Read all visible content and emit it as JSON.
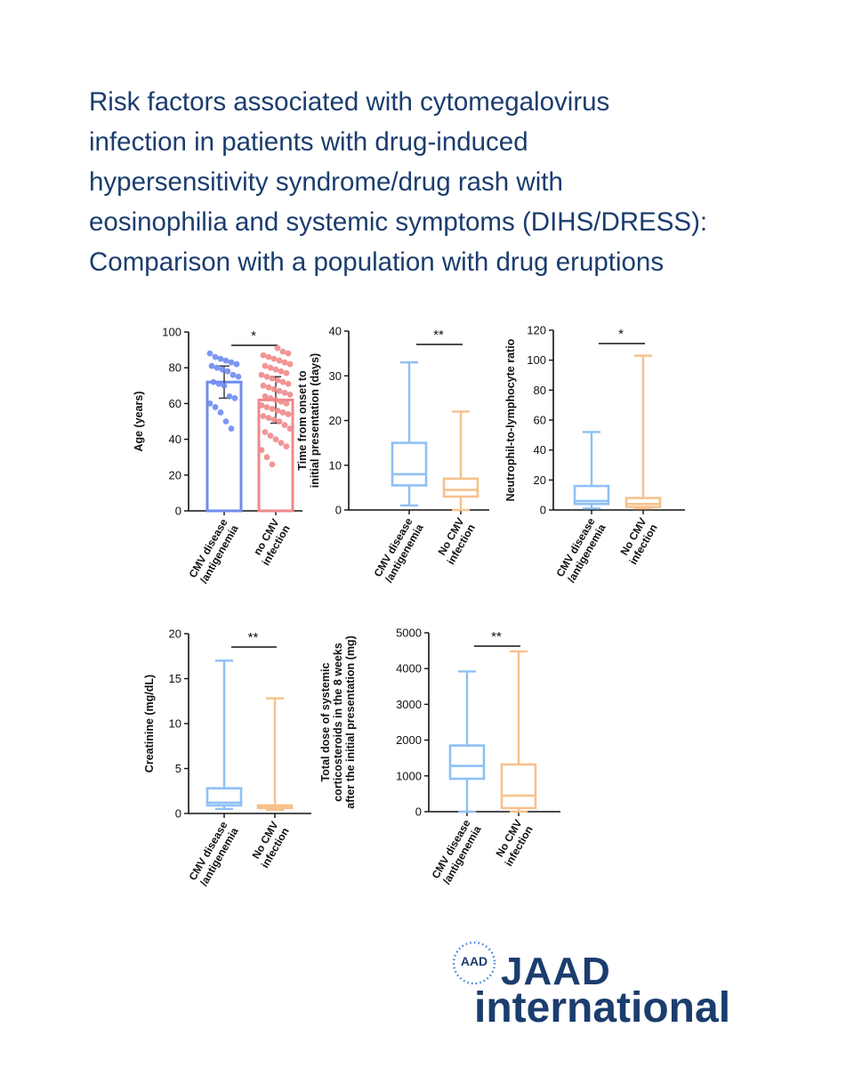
{
  "title_lines": [
    "Risk factors associated with cytomegalovirus",
    "infection in patients with drug-induced",
    "hypersensitivity syndrome/drug rash with",
    "eosinophilia and systemic symptoms (DIHS/DRESS):",
    "Comparison with a population with drug eruptions"
  ],
  "logo": {
    "badge": "AAD",
    "line1": "JAAD",
    "line2": "international"
  },
  "colors": {
    "blue": "#6f8cf0",
    "red": "#f0898b",
    "box_blue": "#8ec0f6",
    "box_orange": "#f6c18c",
    "title": "#1b3d6e"
  },
  "chart_data": [
    {
      "type": "bar",
      "ylabel": [
        "Age (years)"
      ],
      "ylim": [
        0,
        100
      ],
      "yticks": [
        0,
        20,
        40,
        60,
        80,
        100
      ],
      "categories": [
        [
          "CMV disease",
          "/antigenemia"
        ],
        [
          "no CMV",
          "infection"
        ]
      ],
      "series": [
        {
          "mean": 72,
          "sd": [
            63,
            81
          ],
          "points": [
            88,
            86,
            85,
            84,
            83,
            82,
            81,
            80,
            79,
            78,
            76,
            75,
            72,
            71,
            70,
            64,
            63,
            60,
            58,
            55,
            50,
            46
          ]
        },
        {
          "mean": 62,
          "sd": [
            49,
            75
          ],
          "points": [
            91,
            89,
            88,
            87,
            86,
            85,
            84,
            83,
            82,
            81,
            80,
            79,
            78,
            77,
            76,
            75,
            74,
            73,
            72,
            71,
            70,
            69,
            68,
            67,
            66,
            65,
            64,
            63,
            62,
            61,
            60,
            59,
            58,
            57,
            56,
            55,
            54,
            53,
            52,
            51,
            50,
            48,
            46,
            44,
            42,
            40,
            38,
            36,
            34,
            30,
            26
          ]
        }
      ],
      "significance": "*"
    },
    {
      "type": "box",
      "ylabel": [
        "Time from onset to",
        "initial presentation (days)"
      ],
      "ylim": [
        0,
        40
      ],
      "yticks": [
        0,
        10,
        20,
        30,
        40
      ],
      "categories": [
        [
          "CMV disease",
          "/antigenemia"
        ],
        [
          "No CMV",
          "infection"
        ]
      ],
      "boxes": [
        {
          "min": 1,
          "q1": 5.5,
          "median": 8,
          "q3": 15,
          "max": 33
        },
        {
          "min": 0,
          "q1": 3,
          "median": 4.5,
          "q3": 7,
          "max": 22
        }
      ],
      "significance": "**"
    },
    {
      "type": "box",
      "ylabel": [
        "Neutrophil-to-lymphocyte ratio"
      ],
      "ylim": [
        0,
        120
      ],
      "yticks": [
        0,
        20,
        40,
        60,
        80,
        100,
        120
      ],
      "categories": [
        [
          "CMV disease",
          "/antigenemia"
        ],
        [
          "No CMV",
          "infection"
        ]
      ],
      "boxes": [
        {
          "min": 1,
          "q1": 4,
          "median": 6,
          "q3": 16,
          "max": 52
        },
        {
          "min": 1,
          "q1": 2,
          "median": 4,
          "q3": 8,
          "max": 103
        }
      ],
      "significance": "*"
    },
    {
      "type": "box",
      "ylabel": [
        "Creatinine (mg/dL)"
      ],
      "ylim": [
        0,
        20
      ],
      "yticks": [
        0,
        5,
        10,
        15,
        20
      ],
      "categories": [
        [
          "CMV disease",
          "/antigenemia"
        ],
        [
          "No CMV",
          "infection"
        ]
      ],
      "boxes": [
        {
          "min": 0.5,
          "q1": 0.9,
          "median": 1.2,
          "q3": 2.8,
          "max": 17
        },
        {
          "min": 0.4,
          "q1": 0.6,
          "median": 0.7,
          "q3": 0.9,
          "max": 12.8
        }
      ],
      "significance": "**"
    },
    {
      "type": "box",
      "ylabel": [
        "Total dose of systemic",
        "corticosteroids in the 8 weeks",
        "after the initial presentation (mg)"
      ],
      "ylim": [
        0,
        5000
      ],
      "yticks": [
        0,
        1000,
        2000,
        3000,
        4000,
        5000
      ],
      "categories": [
        [
          "CMV disease",
          "/antigenemia"
        ],
        [
          "No CMV",
          "infection"
        ]
      ],
      "boxes": [
        {
          "min": 0,
          "q1": 920,
          "median": 1280,
          "q3": 1850,
          "max": 3920
        },
        {
          "min": 0,
          "q1": 100,
          "median": 450,
          "q3": 1320,
          "max": 4480
        }
      ],
      "significance": "**"
    }
  ]
}
